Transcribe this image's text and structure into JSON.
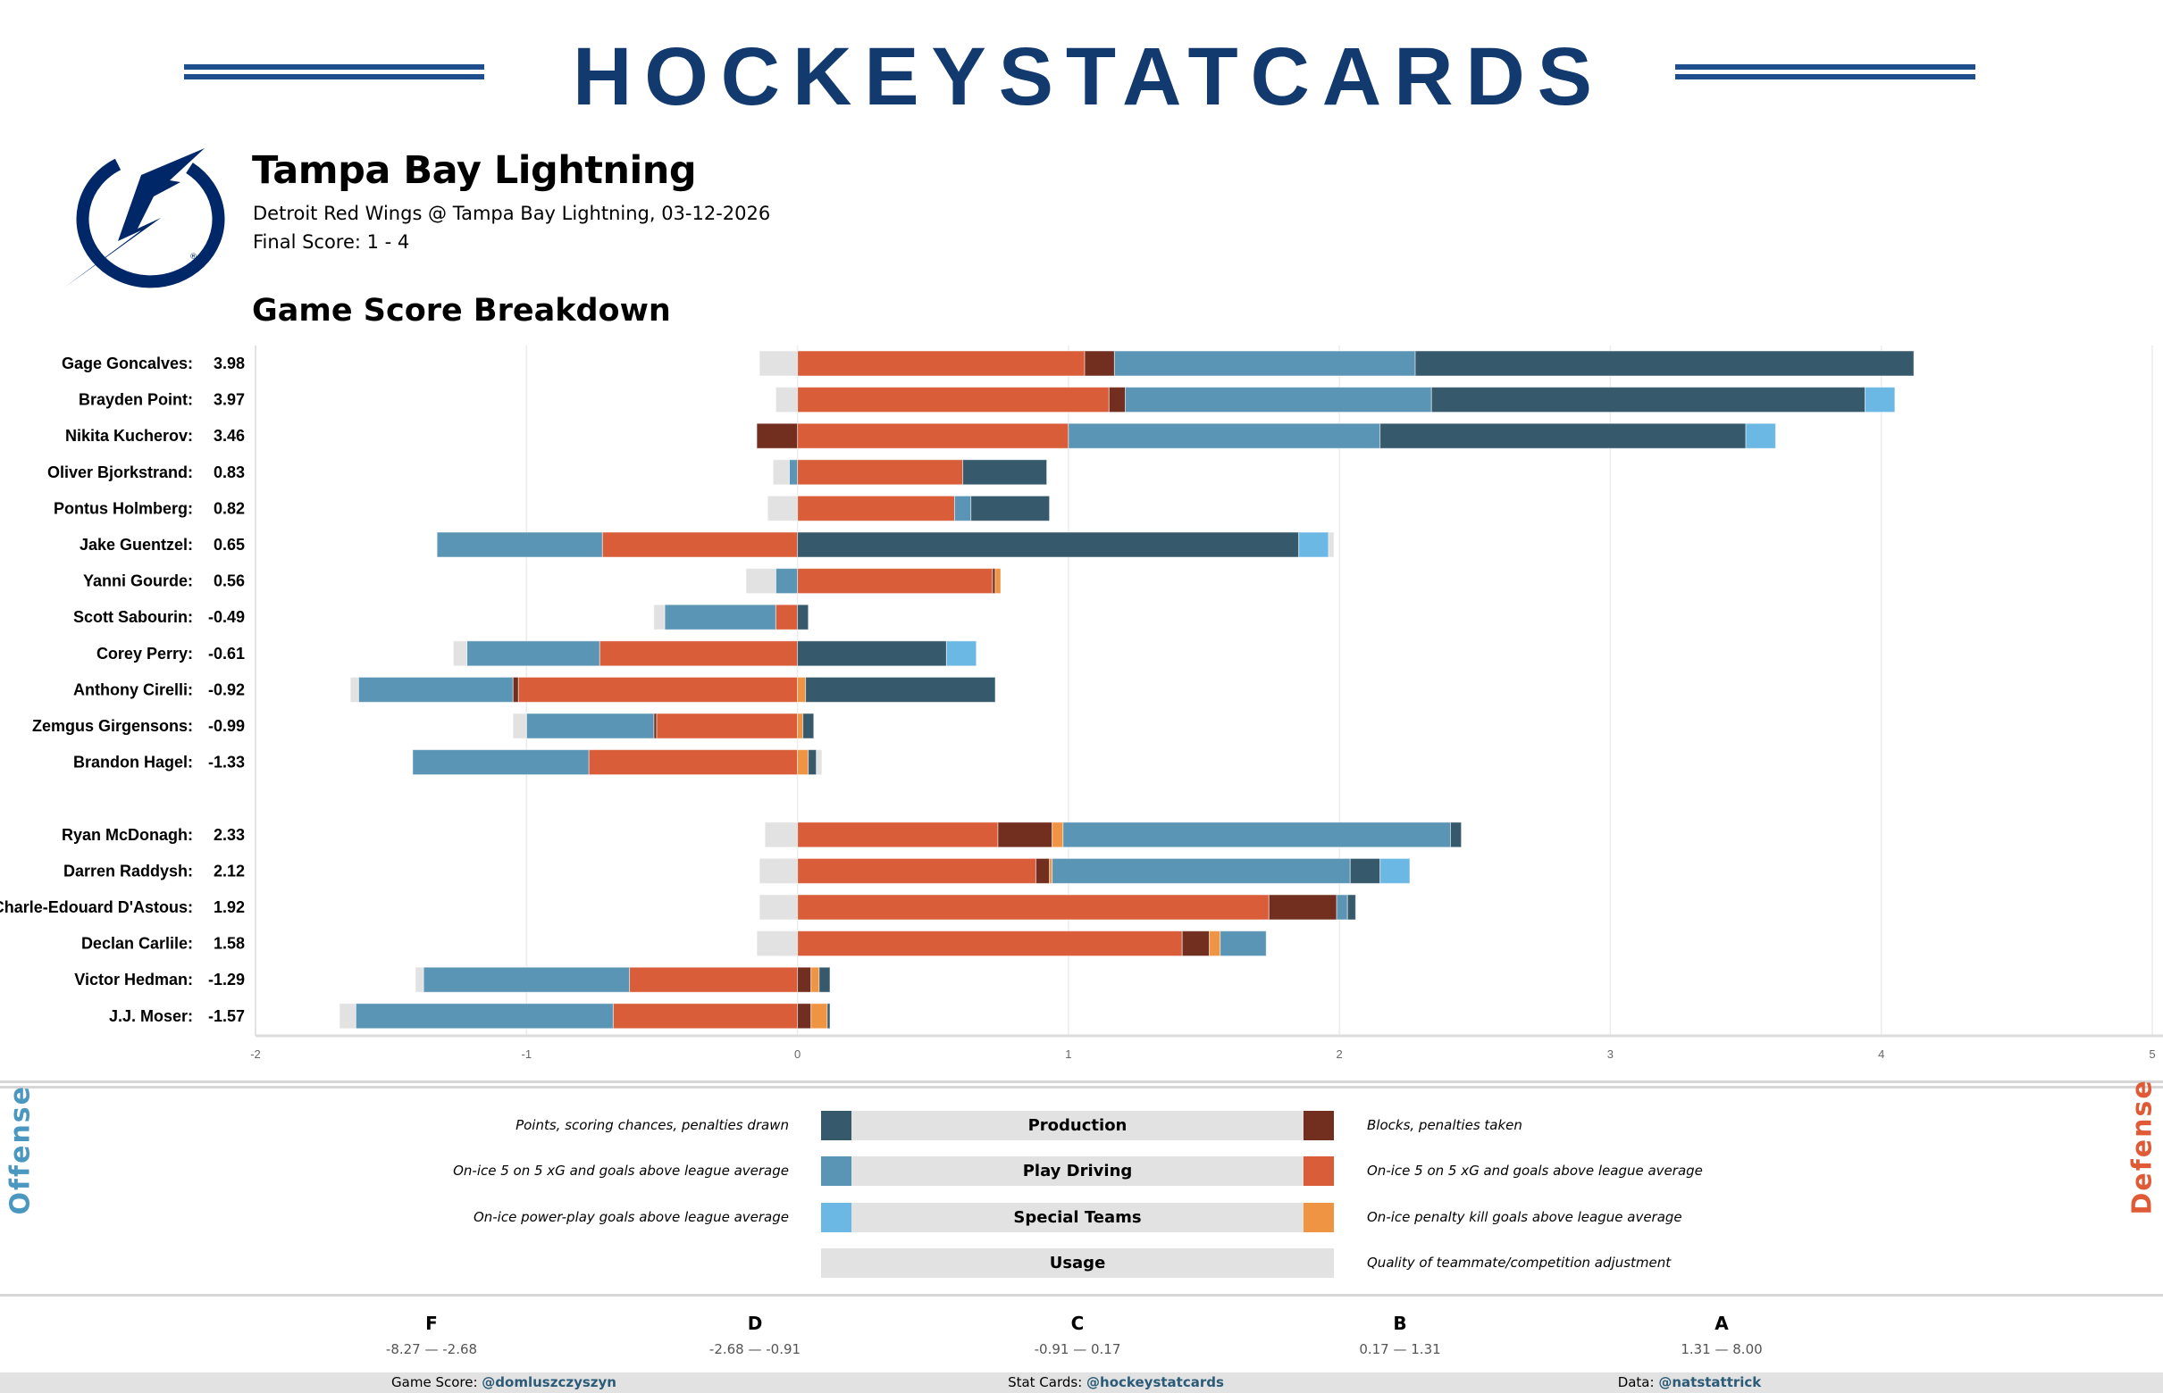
{
  "header": {
    "brand": "HOCKEYSTATCARDS",
    "brand_color": "#123a6e"
  },
  "team": {
    "name": "Tampa Bay Lightning",
    "matchup": "Detroit Red Wings @ Tampa Bay Lightning, 03-12-2026",
    "final_score": "Final Score: 1 - 4",
    "logo_icon": "tampa-bay-lightning-bolt-logo",
    "logo_color": "#002868"
  },
  "section_title": "Game Score Breakdown",
  "chart_data": {
    "type": "bar",
    "orientation": "horizontal-stacked-diverging",
    "xlim": [
      -2,
      5
    ],
    "xticks": [
      "-2",
      "-1",
      "0",
      "1",
      "2",
      "3",
      "4",
      "5"
    ],
    "grid": true,
    "component_order": [
      "def_play_driving",
      "def_production",
      "def_special_teams",
      "off_play_driving",
      "off_production",
      "off_special_teams",
      "usage"
    ],
    "colors": {
      "off_production": "#36596b",
      "off_play_driving": "#5b95b5",
      "off_special_teams": "#6cb8e4",
      "def_production": "#722f20",
      "def_play_driving": "#d95d39",
      "def_special_teams": "#ef9443",
      "usage": "#e2e2e2"
    },
    "groups": [
      [
        {
          "name": "Gage Goncalves:",
          "score": "3.98",
          "def_play_driving": 1.06,
          "def_production": 0.11,
          "def_special_teams": 0,
          "off_play_driving": 1.11,
          "off_production": 1.84,
          "off_special_teams": 0,
          "usage": -0.14
        },
        {
          "name": "Brayden Point:",
          "score": "3.97",
          "def_play_driving": 1.15,
          "def_production": 0.06,
          "def_special_teams": 0,
          "off_play_driving": 1.13,
          "off_production": 1.6,
          "off_special_teams": 0.11,
          "usage": -0.08
        },
        {
          "name": "Nikita Kucherov:",
          "score": "3.46",
          "def_play_driving": 1.0,
          "def_production": -0.15,
          "def_special_teams": 0,
          "off_play_driving": 1.15,
          "off_production": 1.35,
          "off_special_teams": 0.11,
          "usage": 0
        },
        {
          "name": "Oliver Bjorkstrand:",
          "score": "0.83",
          "def_play_driving": 0.61,
          "def_production": 0,
          "def_special_teams": 0,
          "off_play_driving": -0.03,
          "off_production": 0.31,
          "off_special_teams": 0,
          "usage": -0.06
        },
        {
          "name": "Pontus Holmberg:",
          "score": "0.82",
          "def_play_driving": 0.58,
          "def_production": 0,
          "def_special_teams": 0,
          "off_play_driving": 0.06,
          "off_production": 0.29,
          "off_special_teams": 0,
          "usage": -0.11
        },
        {
          "name": "Jake Guentzel:",
          "score": "0.65",
          "def_play_driving": -0.72,
          "def_production": 0,
          "def_special_teams": 0,
          "off_play_driving": -0.61,
          "off_production": 1.85,
          "off_special_teams": 0.11,
          "usage": 0.02
        },
        {
          "name": "Yanni Gourde:",
          "score": "0.56",
          "def_play_driving": 0.72,
          "def_production": 0.01,
          "def_special_teams": 0.02,
          "off_play_driving": -0.08,
          "off_production": 0,
          "off_special_teams": 0,
          "usage": -0.11
        },
        {
          "name": "Scott Sabourin:",
          "score": "-0.49",
          "def_play_driving": -0.08,
          "def_production": 0,
          "def_special_teams": 0,
          "off_play_driving": -0.41,
          "off_production": 0.04,
          "off_special_teams": 0,
          "usage": -0.04
        },
        {
          "name": "Corey Perry:",
          "score": "-0.61",
          "def_play_driving": -0.73,
          "def_production": 0,
          "def_special_teams": 0,
          "off_play_driving": -0.49,
          "off_production": 0.55,
          "off_special_teams": 0.11,
          "usage": -0.05
        },
        {
          "name": "Anthony Cirelli:",
          "score": "-0.92",
          "def_play_driving": -1.03,
          "def_production": -0.02,
          "def_special_teams": 0.03,
          "off_play_driving": -0.57,
          "off_production": 0.7,
          "off_special_teams": 0,
          "usage": -0.03
        },
        {
          "name": "Zemgus Girgensons:",
          "score": "-0.99",
          "def_play_driving": -0.52,
          "def_production": -0.01,
          "def_special_teams": 0.02,
          "off_play_driving": -0.47,
          "off_production": 0.04,
          "off_special_teams": 0,
          "usage": -0.05
        },
        {
          "name": "Brandon Hagel:",
          "score": "-1.33",
          "def_play_driving": -0.77,
          "def_production": 0,
          "def_special_teams": 0.04,
          "off_play_driving": -0.65,
          "off_production": 0.03,
          "off_special_teams": 0,
          "usage": 0.02
        }
      ],
      [
        {
          "name": "Ryan McDonagh:",
          "score": "2.33",
          "def_play_driving": 0.74,
          "def_production": 0.2,
          "def_special_teams": 0.04,
          "off_play_driving": 1.43,
          "off_production": 0.04,
          "off_special_teams": 0,
          "usage": -0.12
        },
        {
          "name": "Darren Raddysh:",
          "score": "2.12",
          "def_play_driving": 0.88,
          "def_production": 0.05,
          "def_special_teams": 0.01,
          "off_play_driving": 1.1,
          "off_production": 0.11,
          "off_special_teams": 0.11,
          "usage": -0.14
        },
        {
          "name": "Charle-Edouard D'Astous:",
          "score": "1.92",
          "def_play_driving": 1.74,
          "def_production": 0.25,
          "def_special_teams": 0,
          "off_play_driving": 0.04,
          "off_production": 0.03,
          "off_special_teams": 0,
          "usage": -0.14
        },
        {
          "name": "Declan Carlile:",
          "score": "1.58",
          "def_play_driving": 1.42,
          "def_production": 0.1,
          "def_special_teams": 0.04,
          "off_play_driving": 0.17,
          "off_production": 0,
          "off_special_teams": 0,
          "usage": -0.15
        },
        {
          "name": "Victor Hedman:",
          "score": "-1.29",
          "def_play_driving": -0.62,
          "def_production": 0.05,
          "def_special_teams": 0.03,
          "off_play_driving": -0.76,
          "off_production": 0.04,
          "off_special_teams": 0,
          "usage": -0.03
        },
        {
          "name": "J.J. Moser:",
          "score": "-1.57",
          "def_play_driving": -0.68,
          "def_production": 0.05,
          "def_special_teams": 0.06,
          "off_play_driving": -0.95,
          "off_production": 0.01,
          "off_special_teams": 0,
          "usage": -0.06
        }
      ]
    ]
  },
  "legend": {
    "offense_label": "Offense",
    "defense_label": "Defense",
    "offense_color": "#4a97c0",
    "defense_color": "#e05a35",
    "rows": [
      {
        "label": "Production",
        "offense_desc": "Points, scoring chances, penalties drawn",
        "defense_desc": "Blocks, penalties taken"
      },
      {
        "label": "Play Driving",
        "offense_desc": "On-ice 5 on 5 xG and goals above league average",
        "defense_desc": "On-ice 5 on 5 xG and goals above league average"
      },
      {
        "label": "Special Teams",
        "offense_desc": "On-ice power-play goals above league average",
        "defense_desc": "On-ice penalty kill goals above league average"
      },
      {
        "label": "Usage",
        "defense_desc": "Quality of teammate/competition adjustment"
      }
    ]
  },
  "grades": [
    {
      "grade": "F",
      "range": "-8.27 — -2.68"
    },
    {
      "grade": "D",
      "range": "-2.68 — -0.91"
    },
    {
      "grade": "C",
      "range": "-0.91 — 0.17"
    },
    {
      "grade": "B",
      "range": "0.17 — 1.31"
    },
    {
      "grade": "A",
      "range": "1.31 — 8.00"
    }
  ],
  "footer": {
    "game_score_label": "Game Score:",
    "game_score_handle": "@domluszczyszyn",
    "stat_cards_label": "Stat Cards:",
    "stat_cards_handle": "@hockeystatcards",
    "data_label": "Data:",
    "data_handle": "@natstattrick"
  }
}
